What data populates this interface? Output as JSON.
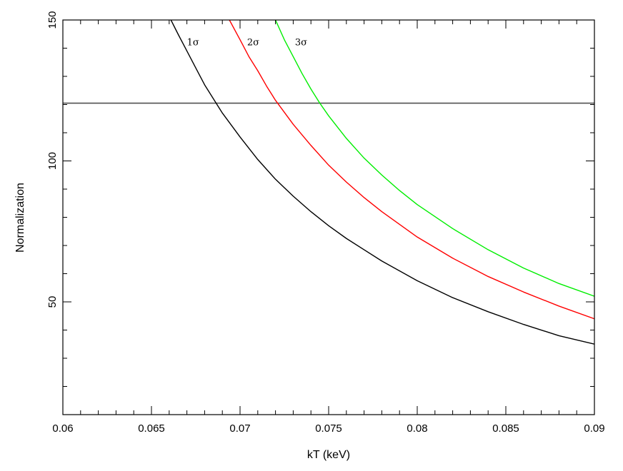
{
  "chart_data": {
    "type": "line",
    "title": "",
    "xlabel": "kT (keV)",
    "ylabel": "Normalization",
    "xlim": [
      0.06,
      0.09
    ],
    "ylim": [
      10,
      150
    ],
    "grid": false,
    "x_ticks": [
      0.06,
      0.065,
      0.07,
      0.075,
      0.08,
      0.085,
      0.09
    ],
    "x_tick_labels": [
      "0.06",
      "0.065",
      "0.07",
      "0.075",
      "0.08",
      "0.085",
      "0.09"
    ],
    "x_minor_step": 0.001,
    "y_ticks": [
      50,
      100,
      150
    ],
    "y_tick_labels": [
      "50",
      "100",
      "150"
    ],
    "y_minor_step": 10,
    "hline": {
      "y": 120.5,
      "color": "#505050"
    },
    "series": [
      {
        "name": "1σ",
        "color": "#000000",
        "label_at": [
          0.067,
          141
        ],
        "x": [
          0.0661,
          0.0665,
          0.067,
          0.0675,
          0.068,
          0.0685,
          0.069,
          0.07,
          0.071,
          0.072,
          0.073,
          0.074,
          0.075,
          0.076,
          0.078,
          0.08,
          0.082,
          0.084,
          0.086,
          0.088,
          0.09
        ],
        "values": [
          150,
          145,
          139,
          133,
          127,
          122,
          117,
          108.5,
          100.5,
          93.5,
          87.5,
          82,
          77,
          72.5,
          64.5,
          57.5,
          51.5,
          46.5,
          42,
          38,
          35
        ]
      },
      {
        "name": "2σ",
        "color": "#ff0000",
        "label_at": [
          0.0704,
          141
        ],
        "x": [
          0.0694,
          0.07,
          0.0705,
          0.071,
          0.0715,
          0.072,
          0.073,
          0.074,
          0.075,
          0.076,
          0.077,
          0.078,
          0.08,
          0.082,
          0.084,
          0.086,
          0.088,
          0.09
        ],
        "values": [
          150,
          143,
          137,
          132,
          126.5,
          121.5,
          113,
          105.5,
          98.5,
          92.5,
          87,
          82,
          73,
          65.5,
          59,
          53.5,
          48.5,
          44
        ]
      },
      {
        "name": "3σ",
        "color": "#00ee00",
        "label_at": [
          0.0731,
          141
        ],
        "x": [
          0.072,
          0.0725,
          0.073,
          0.0735,
          0.074,
          0.0745,
          0.075,
          0.076,
          0.077,
          0.078,
          0.079,
          0.08,
          0.082,
          0.084,
          0.086,
          0.088,
          0.09
        ],
        "values": [
          150,
          143,
          137,
          131,
          125.5,
          120.5,
          116,
          108,
          101,
          95,
          89.5,
          84.5,
          76,
          68.5,
          62,
          56.5,
          52
        ]
      }
    ]
  }
}
